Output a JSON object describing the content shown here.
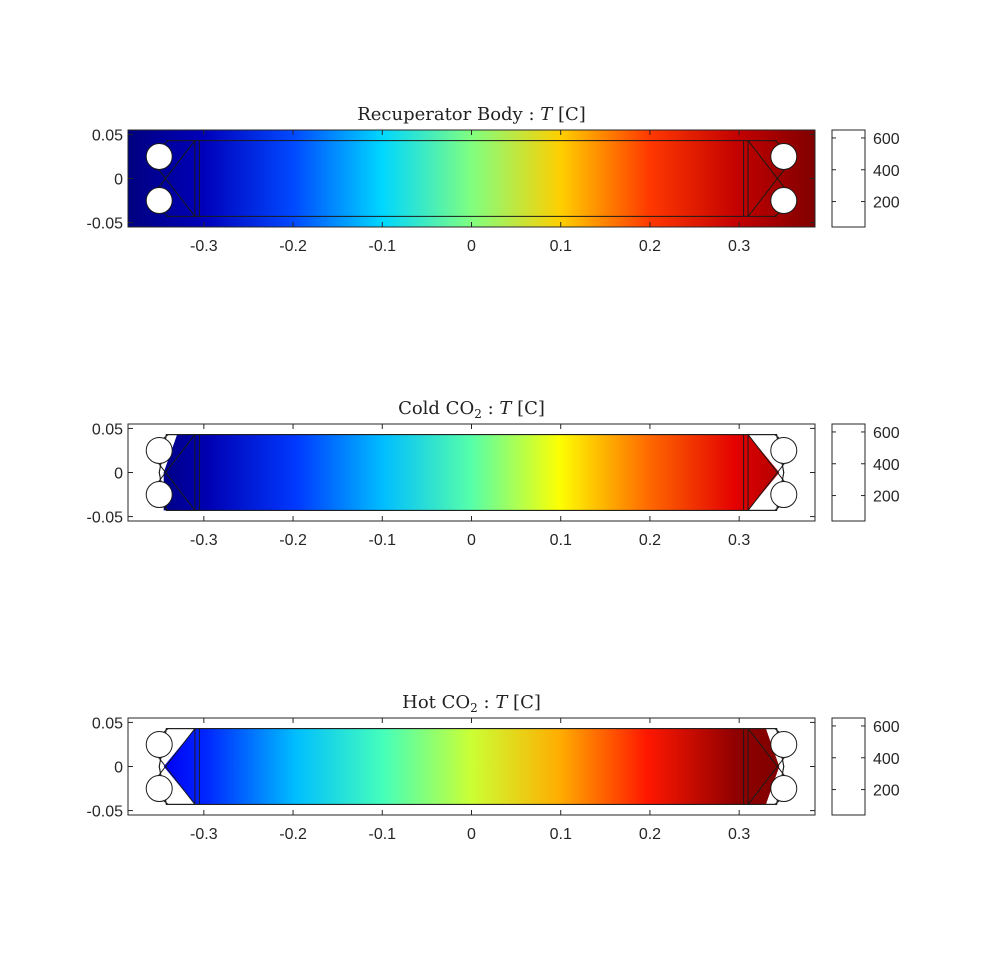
{
  "chart_data": [
    {
      "type": "heatmap",
      "id": "body",
      "title": {
        "prefix": "Recuperator Body : ",
        "var": "T",
        "unit": " [C]"
      },
      "x_ticks": [
        -0.3,
        -0.2,
        -0.1,
        0,
        0.1,
        0.2,
        0.3
      ],
      "x_tick_labels": [
        "-0.3",
        "-0.2",
        "-0.1",
        "0",
        "0.1",
        "0.2",
        "0.3"
      ],
      "y_ticks": [
        0.05,
        0,
        -0.05
      ],
      "y_tick_labels": [
        "0.05",
        "0",
        "-0.05"
      ],
      "xlim": [
        -0.385,
        0.385
      ],
      "ylim": [
        -0.055,
        0.055
      ],
      "colorbar": {
        "colormap": "jet",
        "clim": [
          40,
          650
        ],
        "ticks": [
          600,
          400,
          200
        ],
        "tick_labels": [
          "600",
          "400",
          "200"
        ]
      },
      "temperature_profile": {
        "x": [
          -0.385,
          -0.3,
          -0.2,
          -0.1,
          0,
          0.1,
          0.2,
          0.3,
          0.385
        ],
        "T": [
          40,
          75,
          160,
          245,
          345,
          450,
          540,
          610,
          650
        ]
      },
      "region": "full"
    },
    {
      "type": "heatmap",
      "id": "cold",
      "title": {
        "prefix": "Cold CO",
        "sub": "2",
        "suffix": " : ",
        "var": "T",
        "unit": " [C]"
      },
      "x_ticks": [
        -0.3,
        -0.2,
        -0.1,
        0,
        0.1,
        0.2,
        0.3
      ],
      "x_tick_labels": [
        "-0.3",
        "-0.2",
        "-0.1",
        "0",
        "0.1",
        "0.2",
        "0.3"
      ],
      "y_ticks": [
        0.05,
        0,
        -0.05
      ],
      "y_tick_labels": [
        "0.05",
        "0",
        "-0.05"
      ],
      "xlim": [
        -0.385,
        0.385
      ],
      "ylim": [
        -0.055,
        0.055
      ],
      "colorbar": {
        "colormap": "jet",
        "clim": [
          40,
          650
        ],
        "ticks": [
          600,
          400,
          200
        ],
        "tick_labels": [
          "600",
          "400",
          "200"
        ]
      },
      "temperature_profile": {
        "x": [
          -0.35,
          -0.3,
          -0.2,
          -0.1,
          0,
          0.1,
          0.2,
          0.3,
          0.35
        ],
        "T": [
          45,
          70,
          150,
          230,
          320,
          420,
          510,
          590,
          620
        ]
      },
      "region": "channel-left-inlet"
    },
    {
      "type": "heatmap",
      "id": "hot",
      "title": {
        "prefix": "Hot CO",
        "sub": "2",
        "suffix": " : ",
        "var": "T",
        "unit": " [C]"
      },
      "x_ticks": [
        -0.3,
        -0.2,
        -0.1,
        0,
        0.1,
        0.2,
        0.3
      ],
      "x_tick_labels": [
        "-0.3",
        "-0.2",
        "-0.1",
        "0",
        "0.1",
        "0.2",
        "0.3"
      ],
      "y_ticks": [
        0.05,
        0,
        -0.05
      ],
      "y_tick_labels": [
        "0.05",
        "0",
        "-0.05"
      ],
      "xlim": [
        -0.385,
        0.385
      ],
      "ylim": [
        -0.055,
        0.055
      ],
      "colorbar": {
        "colormap": "jet",
        "clim": [
          40,
          650
        ],
        "ticks": [
          600,
          400,
          200
        ],
        "tick_labels": [
          "600",
          "400",
          "200"
        ]
      },
      "temperature_profile": {
        "x": [
          -0.35,
          -0.3,
          -0.2,
          -0.1,
          0,
          0.1,
          0.2,
          0.3,
          0.35
        ],
        "T": [
          110,
          140,
          230,
          310,
          390,
          470,
          560,
          640,
          660
        ]
      },
      "region": "channel-right-inlet"
    }
  ]
}
